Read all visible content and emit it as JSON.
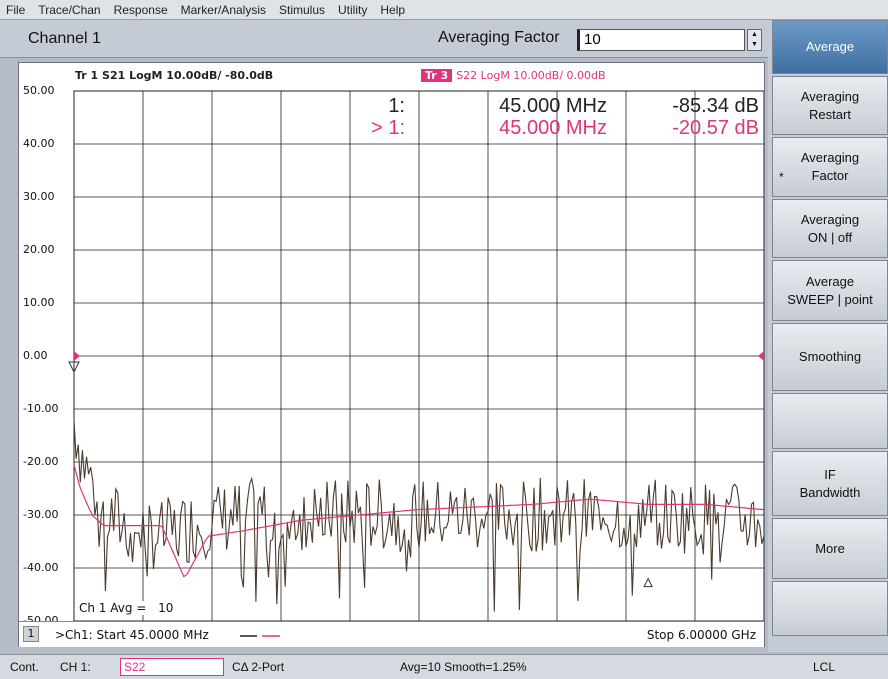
{
  "menu": [
    "File",
    "Trace/Chan",
    "Response",
    "Marker/Analysis",
    "Stimulus",
    "Utility",
    "Help"
  ],
  "channel_title": "Channel 1",
  "averaging_factor": {
    "label": "Averaging Factor",
    "value": "10"
  },
  "traces": {
    "tr1": "Tr 1  S21 LogM 10.00dB/  -80.0dB",
    "tr3_badge": "Tr 3",
    "tr3": "S22 LogM 10.00dB/  0.00dB"
  },
  "markers": [
    {
      "num": "1:",
      "freq": "45.000 MHz",
      "value": "-85.34 dB"
    },
    {
      "num": "> 1:",
      "freq": "45.000 MHz",
      "value": "-20.57 dB"
    }
  ],
  "y_ticks": [
    "50.00",
    "40.00",
    "30.00",
    "20.00",
    "10.00",
    "0.00",
    "-10.00",
    "-20.00",
    "-30.00",
    "-40.00",
    "-50.00"
  ],
  "ch_avg": {
    "label": "Ch 1 Avg =",
    "value": "10"
  },
  "bottom": {
    "chan_num": "1",
    "start": ">Ch1: Start  45.0000 MHz",
    "stop": "Stop  6.00000 GHz"
  },
  "softkeys": [
    {
      "line1": "Average",
      "line2": "",
      "active": true,
      "star": false
    },
    {
      "line1": "Averaging",
      "line2": "Restart",
      "active": false,
      "star": false
    },
    {
      "line1": "Averaging",
      "line2": "Factor",
      "active": false,
      "star": true
    },
    {
      "line1": "Averaging",
      "line2": "ON | off",
      "active": false,
      "star": false
    },
    {
      "line1": "Average",
      "line2": "SWEEP | point",
      "active": false,
      "star": false
    },
    {
      "line1": "Smoothing",
      "line2": "",
      "active": false,
      "star": false
    },
    {
      "line1": "",
      "line2": "",
      "active": false,
      "star": false
    },
    {
      "line1": "IF",
      "line2": "Bandwidth",
      "active": false,
      "star": false
    },
    {
      "line1": "More",
      "line2": "",
      "active": false,
      "star": false
    },
    {
      "line1": "",
      "line2": "",
      "active": false,
      "star": false
    }
  ],
  "status": {
    "cont": "Cont.",
    "ch": "CH 1:",
    "param": "S22",
    "cal": "CΔ 2-Port",
    "avg": "Avg=10 Smooth=1.25%",
    "lcl": "LCL"
  },
  "colors": {
    "trace1": "#4a3b2c",
    "trace3": "#e0337a",
    "active_softkey": "#4f7fb2"
  },
  "chart_data": {
    "type": "line",
    "x_range": [
      45.0,
      6000.0
    ],
    "x_unit": "MHz",
    "ylim": [
      -50,
      50
    ],
    "y_unit": "dB",
    "grid": true,
    "series": [
      {
        "name": "S21",
        "x": [
          45,
          100,
          200,
          300,
          500,
          800,
          1200,
          1500,
          2000,
          3000,
          4000,
          5000,
          6000
        ],
        "values": [
          -12,
          -18,
          -24,
          -30,
          -32,
          -34,
          -31,
          -30,
          -30,
          -30,
          -30,
          -30,
          -31
        ]
      },
      {
        "name": "S22",
        "x": [
          45,
          100,
          200,
          300,
          500,
          800,
          1000,
          1200,
          1500,
          2000,
          3000,
          4000,
          4500,
          5000,
          5500,
          6000
        ],
        "values": [
          -20.57,
          -25,
          -30,
          -32,
          -32,
          -32,
          -42,
          -34,
          -33,
          -31,
          -29,
          -28,
          -27,
          -28,
          -28,
          -29
        ]
      }
    ]
  }
}
